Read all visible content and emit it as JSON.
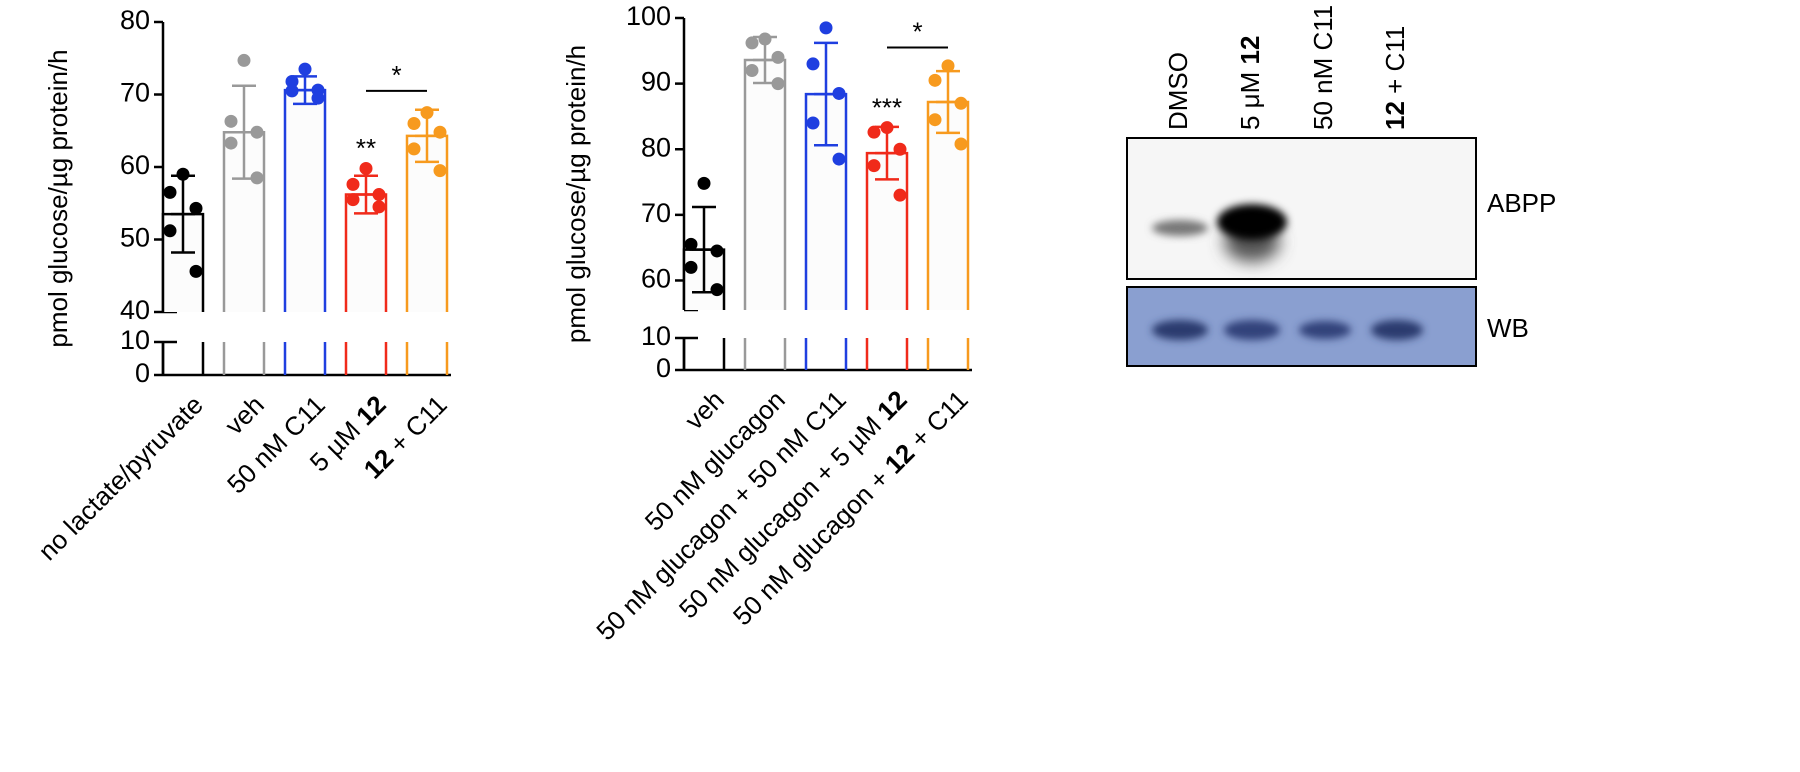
{
  "chart_data": [
    {
      "type": "bar",
      "ylabel": "pmol glucose/µg protein/h",
      "bold_token": "12",
      "categories": [
        "no lactate/pyruvate",
        "veh",
        "50 nM C11",
        "5 µM 12",
        "12 + C11"
      ],
      "colors": [
        "#000000",
        "#999999",
        "#1f3fe0",
        "#f02a1a",
        "#f79a1e"
      ],
      "values": [
        53.5,
        64.8,
        70.6,
        56.2,
        64.3
      ],
      "errors": [
        5.3,
        6.4,
        1.9,
        2.6,
        3.6
      ],
      "points": [
        [
          59,
          56.5,
          54.3,
          51.2,
          45.6
        ],
        [
          74.7,
          66.3,
          64.8,
          63.3,
          58.5
        ],
        [
          73.5,
          71.8,
          70.6,
          70.5,
          69.5
        ],
        [
          59.8,
          57.6,
          56.2,
          55.5,
          54.5
        ],
        [
          67.5,
          66,
          64.8,
          62.5,
          59.5
        ]
      ],
      "ylim": [
        40,
        80
      ],
      "yticks": [
        40,
        50,
        60,
        70,
        80
      ],
      "ylim_lower": [
        0,
        10
      ],
      "yticks_lower": [
        0,
        10
      ],
      "annotations": [
        {
          "text": "**",
          "category": "5 µM 12",
          "y": 62.3
        }
      ],
      "brackets": [
        {
          "text": "*",
          "from": "5 µM 12",
          "to": "12 + C11",
          "y": 70.5
        }
      ]
    },
    {
      "type": "bar",
      "ylabel": "pmol glucose/µg protein/h",
      "bold_token": "12",
      "categories": [
        "veh",
        "50 nM glucagon",
        "50 nM glucagon + 50 nM C11",
        "50 nM glucagon + 5 µM 12",
        "50 nM glucagon + 12 + C11"
      ],
      "colors": [
        "#000000",
        "#999999",
        "#1f3fe0",
        "#f02a1a",
        "#f79a1e"
      ],
      "values": [
        64.7,
        93.6,
        88.4,
        79.4,
        87.2
      ],
      "errors": [
        6.5,
        3.5,
        7.8,
        4,
        4.7
      ],
      "points": [
        [
          74.8,
          65.5,
          64.5,
          62,
          58.6
        ],
        [
          96.8,
          96.2,
          94,
          92,
          90
        ],
        [
          98.5,
          93,
          88.5,
          84,
          78.5
        ],
        [
          83.3,
          82.6,
          80,
          77.5,
          73
        ],
        [
          92.7,
          90.5,
          87,
          84.5,
          80.8
        ]
      ],
      "ylim": [
        55.5,
        100
      ],
      "yticks": [
        60,
        70,
        80,
        90,
        100
      ],
      "ylim_lower": [
        0,
        10
      ],
      "yticks_lower": [
        0,
        10
      ],
      "annotations": [
        {
          "text": "***",
          "category": "50 nM glucagon + 5 µM 12",
          "y": 86
        }
      ],
      "brackets": [
        {
          "text": "*",
          "from": "50 nM glucagon + 5 µM 12",
          "to": "50 nM glucagon + 12 + C11",
          "y": 95.5
        }
      ]
    }
  ],
  "blot": {
    "bold_token": "12",
    "lanes": [
      "DMSO",
      "5 μM 12",
      "50 nM C11",
      "12 + C11"
    ],
    "rows": [
      "ABPP",
      "WB"
    ]
  }
}
